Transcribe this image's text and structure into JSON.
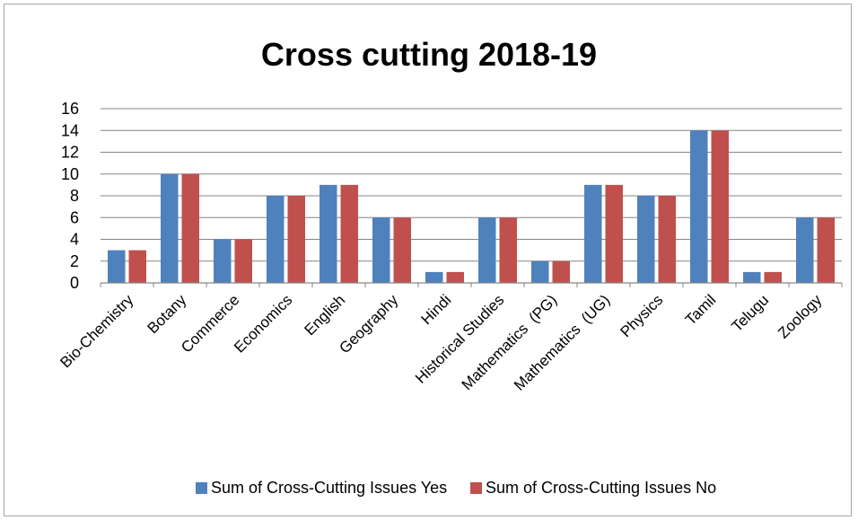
{
  "chart_data": {
    "type": "bar",
    "title": "Cross cutting 2018-19",
    "xlabel": "",
    "ylabel": "",
    "ylim": [
      0,
      16
    ],
    "yticks": [
      0,
      2,
      4,
      6,
      8,
      10,
      12,
      14,
      16
    ],
    "grid": true,
    "legend_position": "bottom",
    "categories": [
      "Bio-Chemistry",
      "Botany",
      "Commerce",
      "Economics",
      "English",
      "Geography",
      "Hindi",
      "Historical Studies",
      "Mathematics  (PG)",
      "Mathematics  (UG)",
      "Physics",
      "Tamil",
      "Telugu",
      "Zoology"
    ],
    "series": [
      {
        "name": "Sum of Cross-Cutting Issues Yes",
        "color": "#4f81bd",
        "values": [
          3,
          10,
          4,
          8,
          9,
          6,
          1,
          6,
          2,
          9,
          8,
          14,
          1,
          6
        ]
      },
      {
        "name": "Sum of Cross-Cutting Issues No",
        "color": "#c0504d",
        "values": [
          3,
          10,
          4,
          8,
          9,
          6,
          1,
          6,
          2,
          9,
          8,
          14,
          1,
          6
        ]
      }
    ]
  }
}
